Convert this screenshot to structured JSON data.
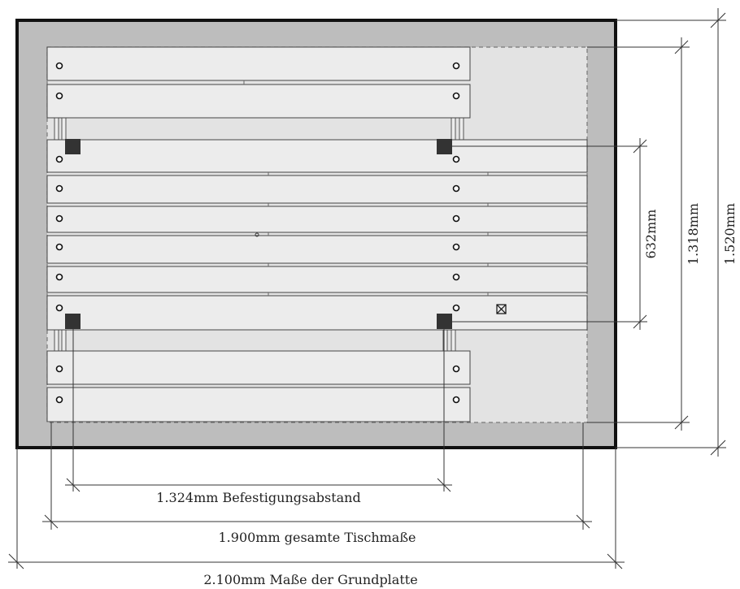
{
  "dimensions": {
    "fastening": "1.324mm Befestigungsabstand",
    "table": "1.900mm gesamte Tischmaße",
    "base": "2.100mm Maße der Grundplatte",
    "vertical_fastening": "632mm",
    "vertical_table": "1.318mm",
    "vertical_base": "1.520mm"
  },
  "colors": {
    "base_plate": "#bdbdbd",
    "base_border": "#111111",
    "table_area": "#e3e3e3",
    "slat": "#ececec",
    "slat_stroke": "#444444",
    "post": "#333333",
    "dim_line": "#333333"
  }
}
